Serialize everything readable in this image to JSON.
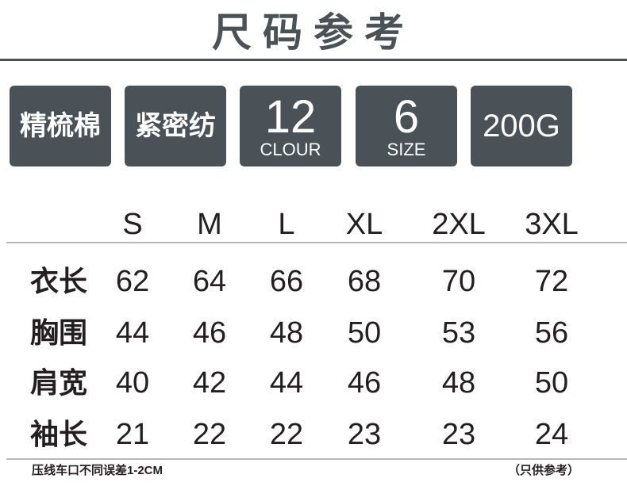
{
  "title": "尺码参考",
  "badges": [
    {
      "text": "精梳棉"
    },
    {
      "text": "紧密纺"
    },
    {
      "big": "12",
      "small": "CLOUR"
    },
    {
      "big": "6",
      "small": "SIZE"
    },
    {
      "text": "200G"
    }
  ],
  "colors": {
    "badge_bg": "#4a5257",
    "title": "#4a5257"
  },
  "table": {
    "sizes": [
      "S",
      "M",
      "L",
      "XL",
      "2XL",
      "3XL"
    ],
    "rows": [
      {
        "label": "衣长",
        "values": [
          "62",
          "64",
          "66",
          "68",
          "70",
          "72"
        ]
      },
      {
        "label": "胸围",
        "values": [
          "44",
          "46",
          "48",
          "50",
          "53",
          "56"
        ]
      },
      {
        "label": "肩宽",
        "values": [
          "40",
          "42",
          "44",
          "46",
          "48",
          "50"
        ]
      },
      {
        "label": "袖长",
        "values": [
          "21",
          "22",
          "22",
          "23",
          "23",
          "24"
        ]
      }
    ]
  },
  "footer": {
    "left": "压线车口不同误差1-2CM",
    "right": "（只供参考）"
  }
}
